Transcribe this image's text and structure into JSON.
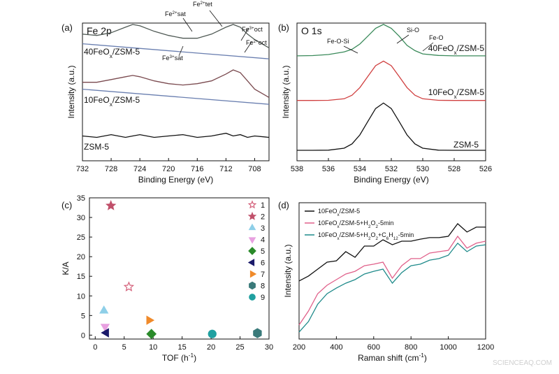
{
  "watermark": "SCIENCEAQ.COM",
  "chart_data": [
    {
      "type": "line",
      "panel": "(a)",
      "title": "Fe 2p",
      "xlabel": [
        {
          "text": "Binding Energy (eV)"
        }
      ],
      "ylabel": [
        {
          "text": "Intensity (a.u.)"
        }
      ],
      "xlim": [
        732,
        706
      ],
      "ylim": [
        0,
        100
      ],
      "xticks": [
        732,
        728,
        724,
        720,
        716,
        712,
        708
      ],
      "series": [
        {
          "name": [
            {
              "text": "40FeO"
            },
            {
              "text": "x",
              "shift": "sub"
            },
            {
              "text": "/ZSM-5"
            }
          ],
          "color": "#505a55",
          "x": [
            732,
            730,
            728,
            726,
            725,
            724,
            722,
            720,
            718,
            716,
            714,
            712,
            711,
            710,
            709,
            708,
            706
          ],
          "values": [
            92,
            91,
            93,
            97,
            99,
            98,
            94,
            91,
            89,
            89,
            92,
            97,
            99,
            97,
            92,
            88,
            82
          ]
        },
        {
          "color": "#6a7fb0",
          "x": [
            732,
            706
          ],
          "values": [
            85,
            74
          ]
        },
        {
          "name": [
            {
              "text": "10FeO"
            },
            {
              "text": "x",
              "shift": "sub"
            },
            {
              "text": "/ZSM-5"
            }
          ],
          "color": "#7a4a4f",
          "x": [
            732,
            730,
            728,
            726,
            725,
            724,
            722,
            720,
            718,
            716,
            714,
            712,
            711,
            710,
            709,
            708,
            706
          ],
          "values": [
            57,
            57,
            59,
            61,
            62,
            61,
            58,
            56,
            55,
            56,
            58,
            63,
            66,
            64,
            58,
            52,
            46
          ]
        },
        {
          "color": "#6a7fb0",
          "x": [
            732,
            706
          ],
          "values": [
            52,
            41
          ]
        },
        {
          "name": [
            {
              "text": "ZSM-5"
            }
          ],
          "color": "#111111",
          "x": [
            732,
            730,
            728,
            726,
            725,
            724,
            722,
            720,
            718,
            716,
            714,
            712,
            711,
            710,
            709,
            708,
            706
          ],
          "values": [
            18,
            17,
            19,
            17,
            18,
            19,
            17,
            18,
            19,
            17,
            18,
            20,
            18,
            19,
            17,
            18,
            17
          ]
        }
      ],
      "annotations": [
        [
          {
            "text": "Fe"
          },
          {
            "text": "2+",
            "shift": "sup"
          },
          {
            "text": "sat"
          }
        ],
        [
          {
            "text": "Fe"
          },
          {
            "text": "2+",
            "shift": "sup"
          },
          {
            "text": "tet"
          }
        ],
        [
          {
            "text": "Fe"
          },
          {
            "text": "3+",
            "shift": "sup"
          },
          {
            "text": "oct"
          }
        ],
        [
          {
            "text": "Fe"
          },
          {
            "text": "2+",
            "shift": "sup"
          },
          {
            "text": "oct"
          }
        ],
        [
          {
            "text": "Fe"
          },
          {
            "text": "3+",
            "shift": "sup"
          },
          {
            "text": "sat"
          }
        ]
      ]
    },
    {
      "type": "line",
      "panel": "(b)",
      "title": "O 1s",
      "xlabel": [
        {
          "text": "Binding Energy (eV)"
        }
      ],
      "ylabel": [
        {
          "text": "Intensity (a.u.)"
        }
      ],
      "xlim": [
        538,
        526
      ],
      "ylim": [
        0,
        105
      ],
      "xticks": [
        538,
        536,
        534,
        532,
        530,
        528,
        526
      ],
      "x": [
        538,
        537,
        536,
        535,
        534.5,
        534,
        533.5,
        533,
        532.5,
        532,
        531.5,
        531,
        530.5,
        530,
        529,
        528,
        527,
        526
      ],
      "series": [
        {
          "name": [
            {
              "text": "40FeO"
            },
            {
              "text": "x",
              "shift": "sub"
            },
            {
              "text": "/ZSM-5"
            }
          ],
          "color": "#3a8a5a",
          "values": [
            80,
            80.2,
            81,
            83,
            85,
            89,
            95,
            101,
            104,
            101,
            95,
            88,
            84,
            81.5,
            80.3,
            80,
            80,
            80
          ]
        },
        {
          "name": [
            {
              "text": "10FeO"
            },
            {
              "text": "x",
              "shift": "sub"
            },
            {
              "text": "/ZSM-5"
            }
          ],
          "color": "#d04040",
          "values": [
            46,
            46,
            46.1,
            47.3,
            50,
            55.8,
            64.2,
            72.5,
            76,
            72.5,
            64.2,
            55.8,
            50,
            47.3,
            46.1,
            46,
            46,
            46
          ]
        },
        {
          "name": [
            {
              "text": "ZSM-5"
            }
          ],
          "color": "#111111",
          "values": [
            8,
            8,
            8.1,
            9.6,
            12.9,
            19.7,
            29.9,
            39.8,
            44,
            39.8,
            29.9,
            19.7,
            12.9,
            9.6,
            8.1,
            8,
            8,
            8
          ]
        }
      ],
      "annotations": [
        [
          {
            "text": "Fe-O-Si"
          }
        ],
        [
          {
            "text": "Si-O"
          }
        ],
        [
          {
            "text": "Fe-O"
          }
        ]
      ]
    },
    {
      "type": "scatter",
      "panel": "(c)",
      "xlabel": [
        {
          "text": "TOF (h"
        },
        {
          "text": "-1",
          "shift": "sup"
        },
        {
          "text": ")"
        }
      ],
      "ylabel": [
        {
          "text": "K/A"
        }
      ],
      "xlim": [
        -1,
        30
      ],
      "ylim": [
        -1,
        35
      ],
      "xticks": [
        0,
        5,
        10,
        15,
        20,
        25,
        30
      ],
      "yticks": [
        0,
        5,
        10,
        15,
        20,
        25,
        30,
        35
      ],
      "legend": "right",
      "series": [
        {
          "name": "1",
          "marker": "star",
          "filled": false,
          "color": "#d4607a",
          "x": [
            5.8
          ],
          "values": [
            12.3
          ]
        },
        {
          "name": "2",
          "marker": "star",
          "filled": true,
          "color": "#c0506a",
          "x": [
            2.7
          ],
          "values": [
            33
          ]
        },
        {
          "name": "3",
          "marker": "triangle-up",
          "filled": true,
          "color": "#8ecfe8",
          "x": [
            1.5
          ],
          "values": [
            6.2
          ]
        },
        {
          "name": "4",
          "marker": "triangle-down",
          "filled": true,
          "color": "#e8a0e0",
          "x": [
            1.7
          ],
          "values": [
            2.2
          ]
        },
        {
          "name": "5",
          "marker": "diamond",
          "filled": true,
          "color": "#2a8a2a",
          "x": [
            9.7
          ],
          "values": [
            0.3
          ]
        },
        {
          "name": "6",
          "marker": "triangle-left",
          "filled": true,
          "color": "#1a1a6a",
          "x": [
            1.9
          ],
          "values": [
            0.6
          ]
        },
        {
          "name": "7",
          "marker": "triangle-right",
          "filled": true,
          "color": "#f08a2a",
          "x": [
            9.3
          ],
          "values": [
            3.8
          ]
        },
        {
          "name": "8",
          "marker": "hexagon",
          "filled": true,
          "color": "#3a7a7a",
          "x": [
            28
          ],
          "values": [
            0.5
          ]
        },
        {
          "name": "9",
          "marker": "circle",
          "filled": true,
          "color": "#20a0a0",
          "x": [
            20.2
          ],
          "values": [
            0.3
          ]
        }
      ]
    },
    {
      "type": "line",
      "panel": "(d)",
      "xlabel": [
        {
          "text": "Raman shift (cm"
        },
        {
          "text": "-1",
          "shift": "sup"
        },
        {
          "text": ")"
        }
      ],
      "ylabel": [
        {
          "text": "Intensity (a.u.)"
        }
      ],
      "xlim": [
        200,
        1200
      ],
      "ylim": [
        0,
        100
      ],
      "xticks": [
        200,
        400,
        600,
        800,
        1000,
        1200
      ],
      "legend": "upper left",
      "x": [
        200,
        250,
        300,
        350,
        400,
        450,
        500,
        550,
        600,
        650,
        700,
        750,
        800,
        850,
        900,
        950,
        1000,
        1050,
        1100,
        1150,
        1200
      ],
      "series": [
        {
          "name": [
            {
              "text": "10FeO"
            },
            {
              "text": "x",
              "shift": "sub"
            },
            {
              "text": "/ZSM-5"
            }
          ],
          "color": "#111111",
          "values": [
            42.6,
            46.2,
            51.3,
            56.4,
            57.4,
            64.1,
            60,
            68.2,
            68.2,
            72.8,
            69.2,
            71.8,
            71.8,
            73.3,
            74.4,
            74.4,
            75.4,
            84.6,
            78.5,
            82.1,
            82.1
          ]
        },
        {
          "name": [
            {
              "text": "10FeO"
            },
            {
              "text": "x",
              "shift": "sub"
            },
            {
              "text": "/ZSM-5+H"
            },
            {
              "text": "2",
              "shift": "sub"
            },
            {
              "text": "O"
            },
            {
              "text": "2",
              "shift": "sub"
            },
            {
              "text": "-5min"
            }
          ],
          "color": "#e0608a",
          "values": [
            10.3,
            20.5,
            33.3,
            39.5,
            43.6,
            47.7,
            49.7,
            53.8,
            54.9,
            56.4,
            44.6,
            53.8,
            59,
            59,
            63.1,
            64.1,
            65.1,
            75.4,
            66.7,
            70.3,
            71.8
          ]
        },
        {
          "name": [
            {
              "text": "10FeO"
            },
            {
              "text": "x",
              "shift": "sub"
            },
            {
              "text": "/ZSM-5+H"
            },
            {
              "text": "2",
              "shift": "sub"
            },
            {
              "text": "O"
            },
            {
              "text": "2",
              "shift": "sub"
            },
            {
              "text": "+C"
            },
            {
              "text": "6",
              "shift": "sub"
            },
            {
              "text": "H"
            },
            {
              "text": "12",
              "shift": "sub"
            },
            {
              "text": "-5min"
            }
          ],
          "color": "#1e8a8a",
          "values": [
            5.1,
            12.8,
            25.6,
            33.3,
            37.4,
            41,
            43.6,
            47.7,
            49.7,
            51.3,
            41,
            48.7,
            53.8,
            54.9,
            57.9,
            59,
            61.5,
            70.3,
            64.1,
            68.2,
            69.2
          ]
        }
      ]
    }
  ]
}
